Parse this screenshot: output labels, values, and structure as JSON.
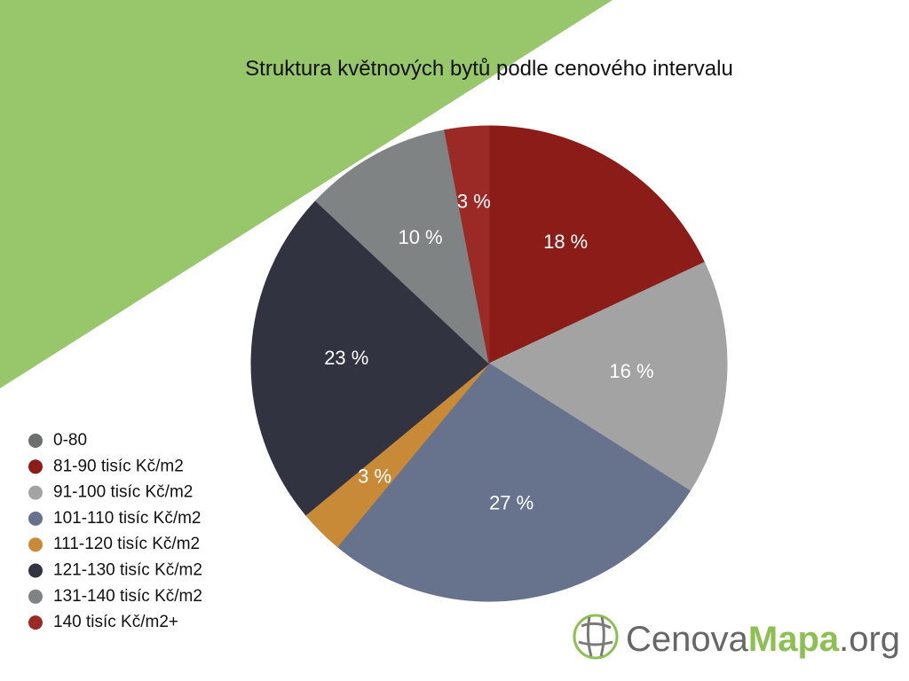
{
  "chart_data": {
    "type": "pie",
    "title": "Struktura květnových bytů podle cenového intervalu",
    "categories": [
      "0-80",
      "81-90 tisíc Kč/m2",
      "91-100 tisíc Kč/m2",
      "101-110 tisíc Kč/m2",
      "111-120 tisíc Kč/m2",
      "121-130 tisíc Kč/m2",
      "131-140 tisíc Kč/m2",
      "140 tisíc Kč/m2+"
    ],
    "values": [
      0,
      18,
      16,
      27,
      3,
      23,
      10,
      3
    ],
    "value_labels": [
      null,
      "18 %",
      "16 %",
      "27 %",
      "3 %",
      "23 %",
      "10 %",
      "3 %"
    ],
    "colors": [
      "#6d6e6e",
      "#8b1c17",
      "#a3a3a3",
      "#67738c",
      "#c98a37",
      "#313440",
      "#7f8383",
      "#9b2a27"
    ],
    "legend": "bottom-left"
  },
  "logo": {
    "name": "Cenova",
    "highlight": "Mapa",
    "suffix": ".org"
  }
}
